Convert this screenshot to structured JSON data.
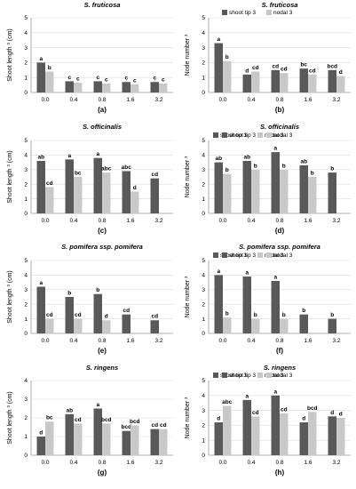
{
  "colors": {
    "shoot": "#595959",
    "nodal": "#c8c8c8",
    "axis": "#9a9a9a"
  },
  "chart_data": [
    {
      "type": "bar",
      "panel": "(a)",
      "title": "S. fruticosa",
      "ylabel": "Shoot length ³ (cm)",
      "ylim": [
        0,
        5
      ],
      "yticks": [
        "0",
        "1",
        "2",
        "3",
        "4",
        "5"
      ],
      "categories": [
        "0.0",
        "0.4",
        "0.8",
        "1.6",
        "3.2"
      ],
      "legend": [],
      "series": [
        {
          "name": "",
          "values": [
            2.0,
            0.75,
            0.75,
            0.7,
            0.7
          ],
          "labels": [
            "a",
            "c",
            "c",
            "c",
            "c"
          ]
        },
        {
          "name": "",
          "values": [
            1.4,
            0.65,
            0.6,
            0.55,
            0.6
          ],
          "labels": [
            "b",
            "c",
            "c",
            "c",
            "c"
          ]
        }
      ]
    },
    {
      "type": "bar",
      "panel": "(b)",
      "title": "S. fruticosa",
      "ylabel": "Node number ³",
      "ylim": [
        0,
        5
      ],
      "yticks": [
        "0",
        "1",
        "2",
        "3",
        "4",
        "5"
      ],
      "categories": [
        "0.0",
        "0.4",
        "0.8",
        "1.6",
        "3.2"
      ],
      "legend": [
        "shoot tip 3",
        "nodal 3"
      ],
      "series": [
        {
          "name": "shoot tip 3",
          "values": [
            3.3,
            1.2,
            1.5,
            1.6,
            1.5
          ],
          "labels": [
            "a",
            "d",
            "cd",
            "bc",
            "bcd"
          ]
        },
        {
          "name": "nodal 3",
          "values": [
            2.1,
            1.4,
            1.3,
            1.2,
            1.1
          ],
          "labels": [
            "b",
            "cd",
            "cd",
            "cd",
            "d"
          ]
        }
      ]
    },
    {
      "type": "bar",
      "panel": "(c)",
      "title": "S. officinalis",
      "ylabel": "Shoot length ³ (cm)",
      "ylim": [
        0,
        5
      ],
      "yticks": [
        "0",
        "1",
        "2",
        "3",
        "4",
        "5"
      ],
      "categories": [
        "0.0",
        "0.4",
        "0.8",
        "1.6",
        "3.2"
      ],
      "legend": [
        "shoot tip 3",
        "nodal 3"
      ],
      "series": [
        {
          "name": "shoot tip 3",
          "values": [
            3.6,
            3.7,
            3.8,
            2.9,
            2.4
          ],
          "labels": [
            "ab",
            "a",
            "a",
            "abc",
            "cd"
          ]
        },
        {
          "name": "nodal 3",
          "values": [
            1.8,
            2.5,
            2.8,
            1.5,
            null
          ],
          "labels": [
            "cd",
            "bc",
            "abc",
            "d",
            ""
          ]
        }
      ]
    },
    {
      "type": "bar",
      "panel": "(d)",
      "title": "S. officinalis",
      "ylabel": "Node number ³",
      "ylim": [
        0,
        5
      ],
      "yticks": [
        "0",
        "1",
        "2",
        "3",
        "4",
        "5"
      ],
      "categories": [
        "0.0",
        "0.4",
        "0.8",
        "1.6",
        "3.2"
      ],
      "legend": [
        "shoot tip 3",
        "nodal 3"
      ],
      "series": [
        {
          "name": "shoot tip 3",
          "values": [
            3.5,
            3.6,
            4.2,
            3.3,
            2.8
          ],
          "labels": [
            "ab",
            "ab",
            "a",
            "ab",
            "b"
          ]
        },
        {
          "name": "nodal 3",
          "values": [
            2.7,
            3.0,
            3.0,
            2.5,
            null
          ],
          "labels": [
            "b",
            "b",
            "b",
            "b",
            ""
          ]
        }
      ]
    },
    {
      "type": "bar",
      "panel": "(e)",
      "title": "S. pomifera ssp. pomifera",
      "ylabel": "Shoot length ³ (cm)",
      "ylim": [
        0,
        5
      ],
      "yticks": [
        "0",
        "1",
        "2",
        "3",
        "4",
        "5"
      ],
      "categories": [
        "0.0",
        "0.4",
        "0.8",
        "1.6",
        "3.2"
      ],
      "legend": [
        "shoot tip 3",
        "nodal 3"
      ],
      "series": [
        {
          "name": "shoot tip 3",
          "values": [
            3.2,
            2.5,
            2.7,
            1.3,
            0.9
          ],
          "labels": [
            "a",
            "b",
            "b",
            "cd",
            "cd"
          ]
        },
        {
          "name": "nodal 3",
          "values": [
            1.0,
            1.0,
            0.9,
            null,
            null
          ],
          "labels": [
            "cd",
            "cd",
            "d",
            "",
            ""
          ]
        }
      ]
    },
    {
      "type": "bar",
      "panel": "(f)",
      "title": "S. pomifera ssp. pomifera",
      "ylabel": "Node number ³",
      "ylim": [
        0,
        5
      ],
      "yticks": [
        "0",
        "1",
        "2",
        "3",
        "4",
        "5"
      ],
      "categories": [
        "0.0",
        "0.4",
        "0.8",
        "1.6",
        "3.2"
      ],
      "legend": [
        "shoot tip 3",
        "nodal 3"
      ],
      "series": [
        {
          "name": "shoot tip 3",
          "values": [
            4.0,
            3.9,
            3.6,
            1.3,
            1.0
          ],
          "labels": [
            "a",
            "a",
            "a",
            "b",
            "b"
          ]
        },
        {
          "name": "nodal 3",
          "values": [
            1.1,
            1.0,
            1.0,
            null,
            null
          ],
          "labels": [
            "b",
            "b",
            "b",
            "",
            ""
          ]
        }
      ]
    },
    {
      "type": "bar",
      "panel": "(g)",
      "title": "S. ringens",
      "ylabel": "Shoot length ³ (cm)",
      "ylim": [
        0,
        4
      ],
      "yticks": [
        "0",
        "1",
        "2",
        "3",
        "4"
      ],
      "categories": [
        "0.0",
        "0.4",
        "0.8",
        "1.6",
        "3.2"
      ],
      "legend": [
        "shoot tip 3",
        "nodal 3"
      ],
      "series": [
        {
          "name": "shoot tip 3",
          "values": [
            1.0,
            2.2,
            2.5,
            1.3,
            1.4
          ],
          "labels": [
            "d",
            "ab",
            "a",
            "bcd",
            "cd"
          ]
        },
        {
          "name": "nodal 3",
          "values": [
            1.8,
            1.7,
            1.7,
            1.6,
            1.4
          ],
          "labels": [
            "bc",
            "cd",
            "bcd",
            "bcd",
            "cd"
          ]
        }
      ]
    },
    {
      "type": "bar",
      "panel": "(h)",
      "title": "S. ringens",
      "ylabel": "Node number ³",
      "ylim": [
        0,
        5
      ],
      "yticks": [
        "0",
        "1",
        "2",
        "3",
        "4",
        "5"
      ],
      "categories": [
        "0.0",
        "0.4",
        "0.8",
        "1.6",
        "3.2"
      ],
      "legend": [
        "shoot tip 3",
        "nodal 3"
      ],
      "series": [
        {
          "name": "shoot tip 3",
          "values": [
            2.2,
            3.7,
            4.0,
            2.2,
            2.6
          ],
          "labels": [
            "d",
            "a",
            "a",
            "d",
            "d"
          ]
        },
        {
          "name": "nodal 3",
          "values": [
            3.3,
            2.6,
            2.8,
            2.9,
            2.5
          ],
          "labels": [
            "abc",
            "cd",
            "cd",
            "bcd",
            "d"
          ]
        }
      ]
    }
  ]
}
